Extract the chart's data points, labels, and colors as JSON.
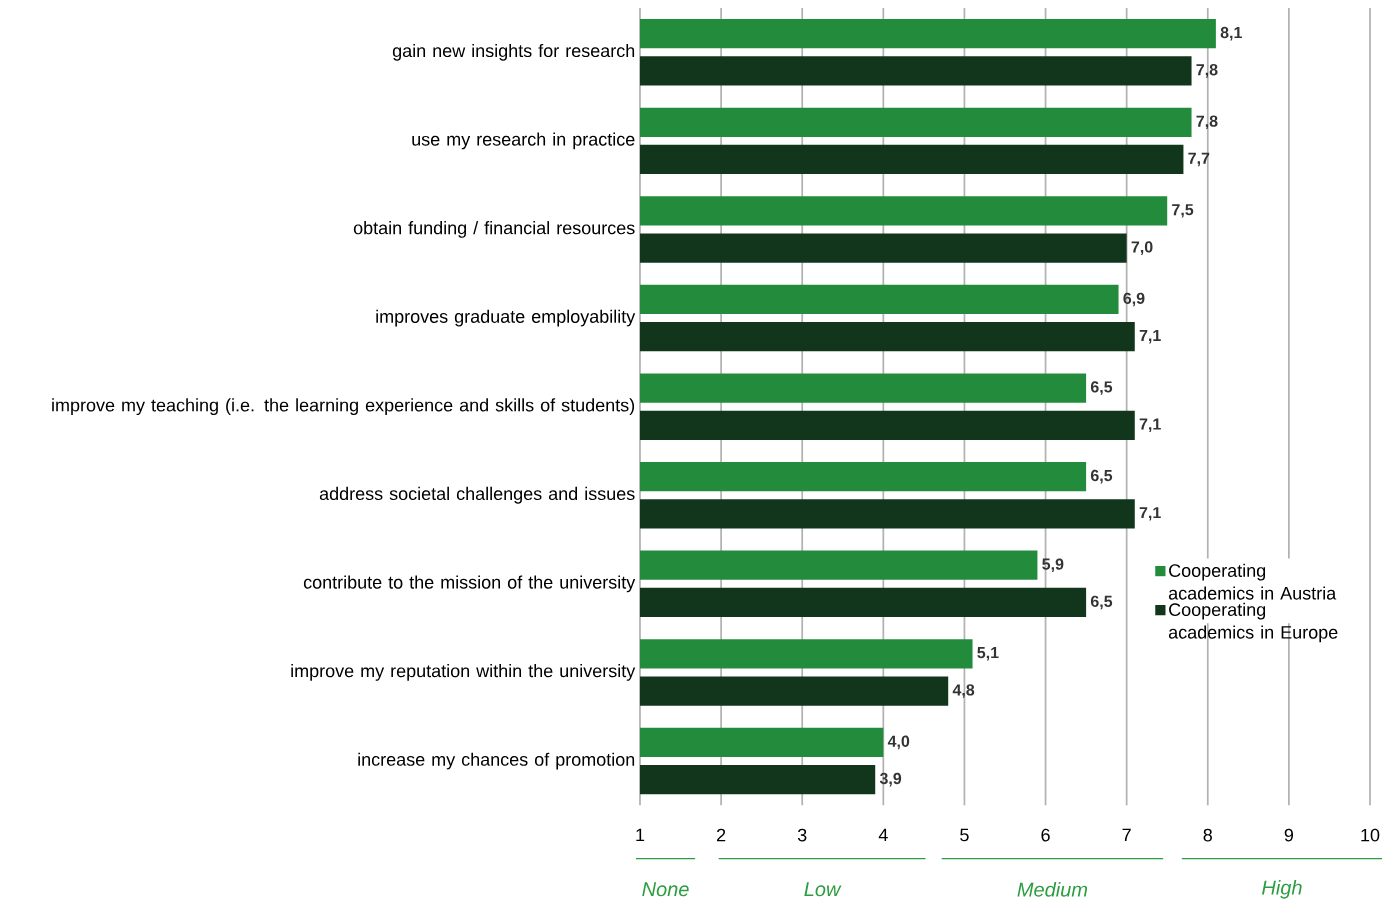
{
  "chart_data": {
    "type": "bar",
    "orientation": "horizontal",
    "categories": [
      "gain new insights for research",
      "use my research in practice",
      "obtain funding / financial resources",
      "improves graduate employability",
      "improve my teaching (i.e. the learning experience and skills of students)",
      "address societal challenges and issues",
      "contribute to the mission of the university",
      "improve my reputation within the university",
      "increase my chances of promotion"
    ],
    "series": [
      {
        "name": "Cooperating academics in Austria",
        "color": "#238c3c",
        "values": [
          8.1,
          7.8,
          7.5,
          6.9,
          6.5,
          6.5,
          5.9,
          5.1,
          4.0
        ],
        "value_labels": [
          "8,1",
          "7,8",
          "7,5",
          "6,9",
          "6,5",
          "6,5",
          "5,9",
          "5,1",
          "4,0"
        ]
      },
      {
        "name": "Cooperating academics in Europe",
        "color": "#12361b",
        "values": [
          7.8,
          7.7,
          7.0,
          7.1,
          7.1,
          7.1,
          6.5,
          4.8,
          3.9
        ],
        "value_labels": [
          "7,8",
          "7,7",
          "7,0",
          "7,1",
          "7,1",
          "7,1",
          "6,5",
          "4,8",
          "3,9"
        ]
      }
    ],
    "xlim": [
      1,
      10
    ],
    "xticks": [
      1,
      2,
      3,
      4,
      5,
      6,
      7,
      8,
      9,
      10
    ],
    "grid": "x",
    "legend": "right",
    "annotations": [
      "None",
      "Low",
      "Medium",
      "High"
    ]
  }
}
